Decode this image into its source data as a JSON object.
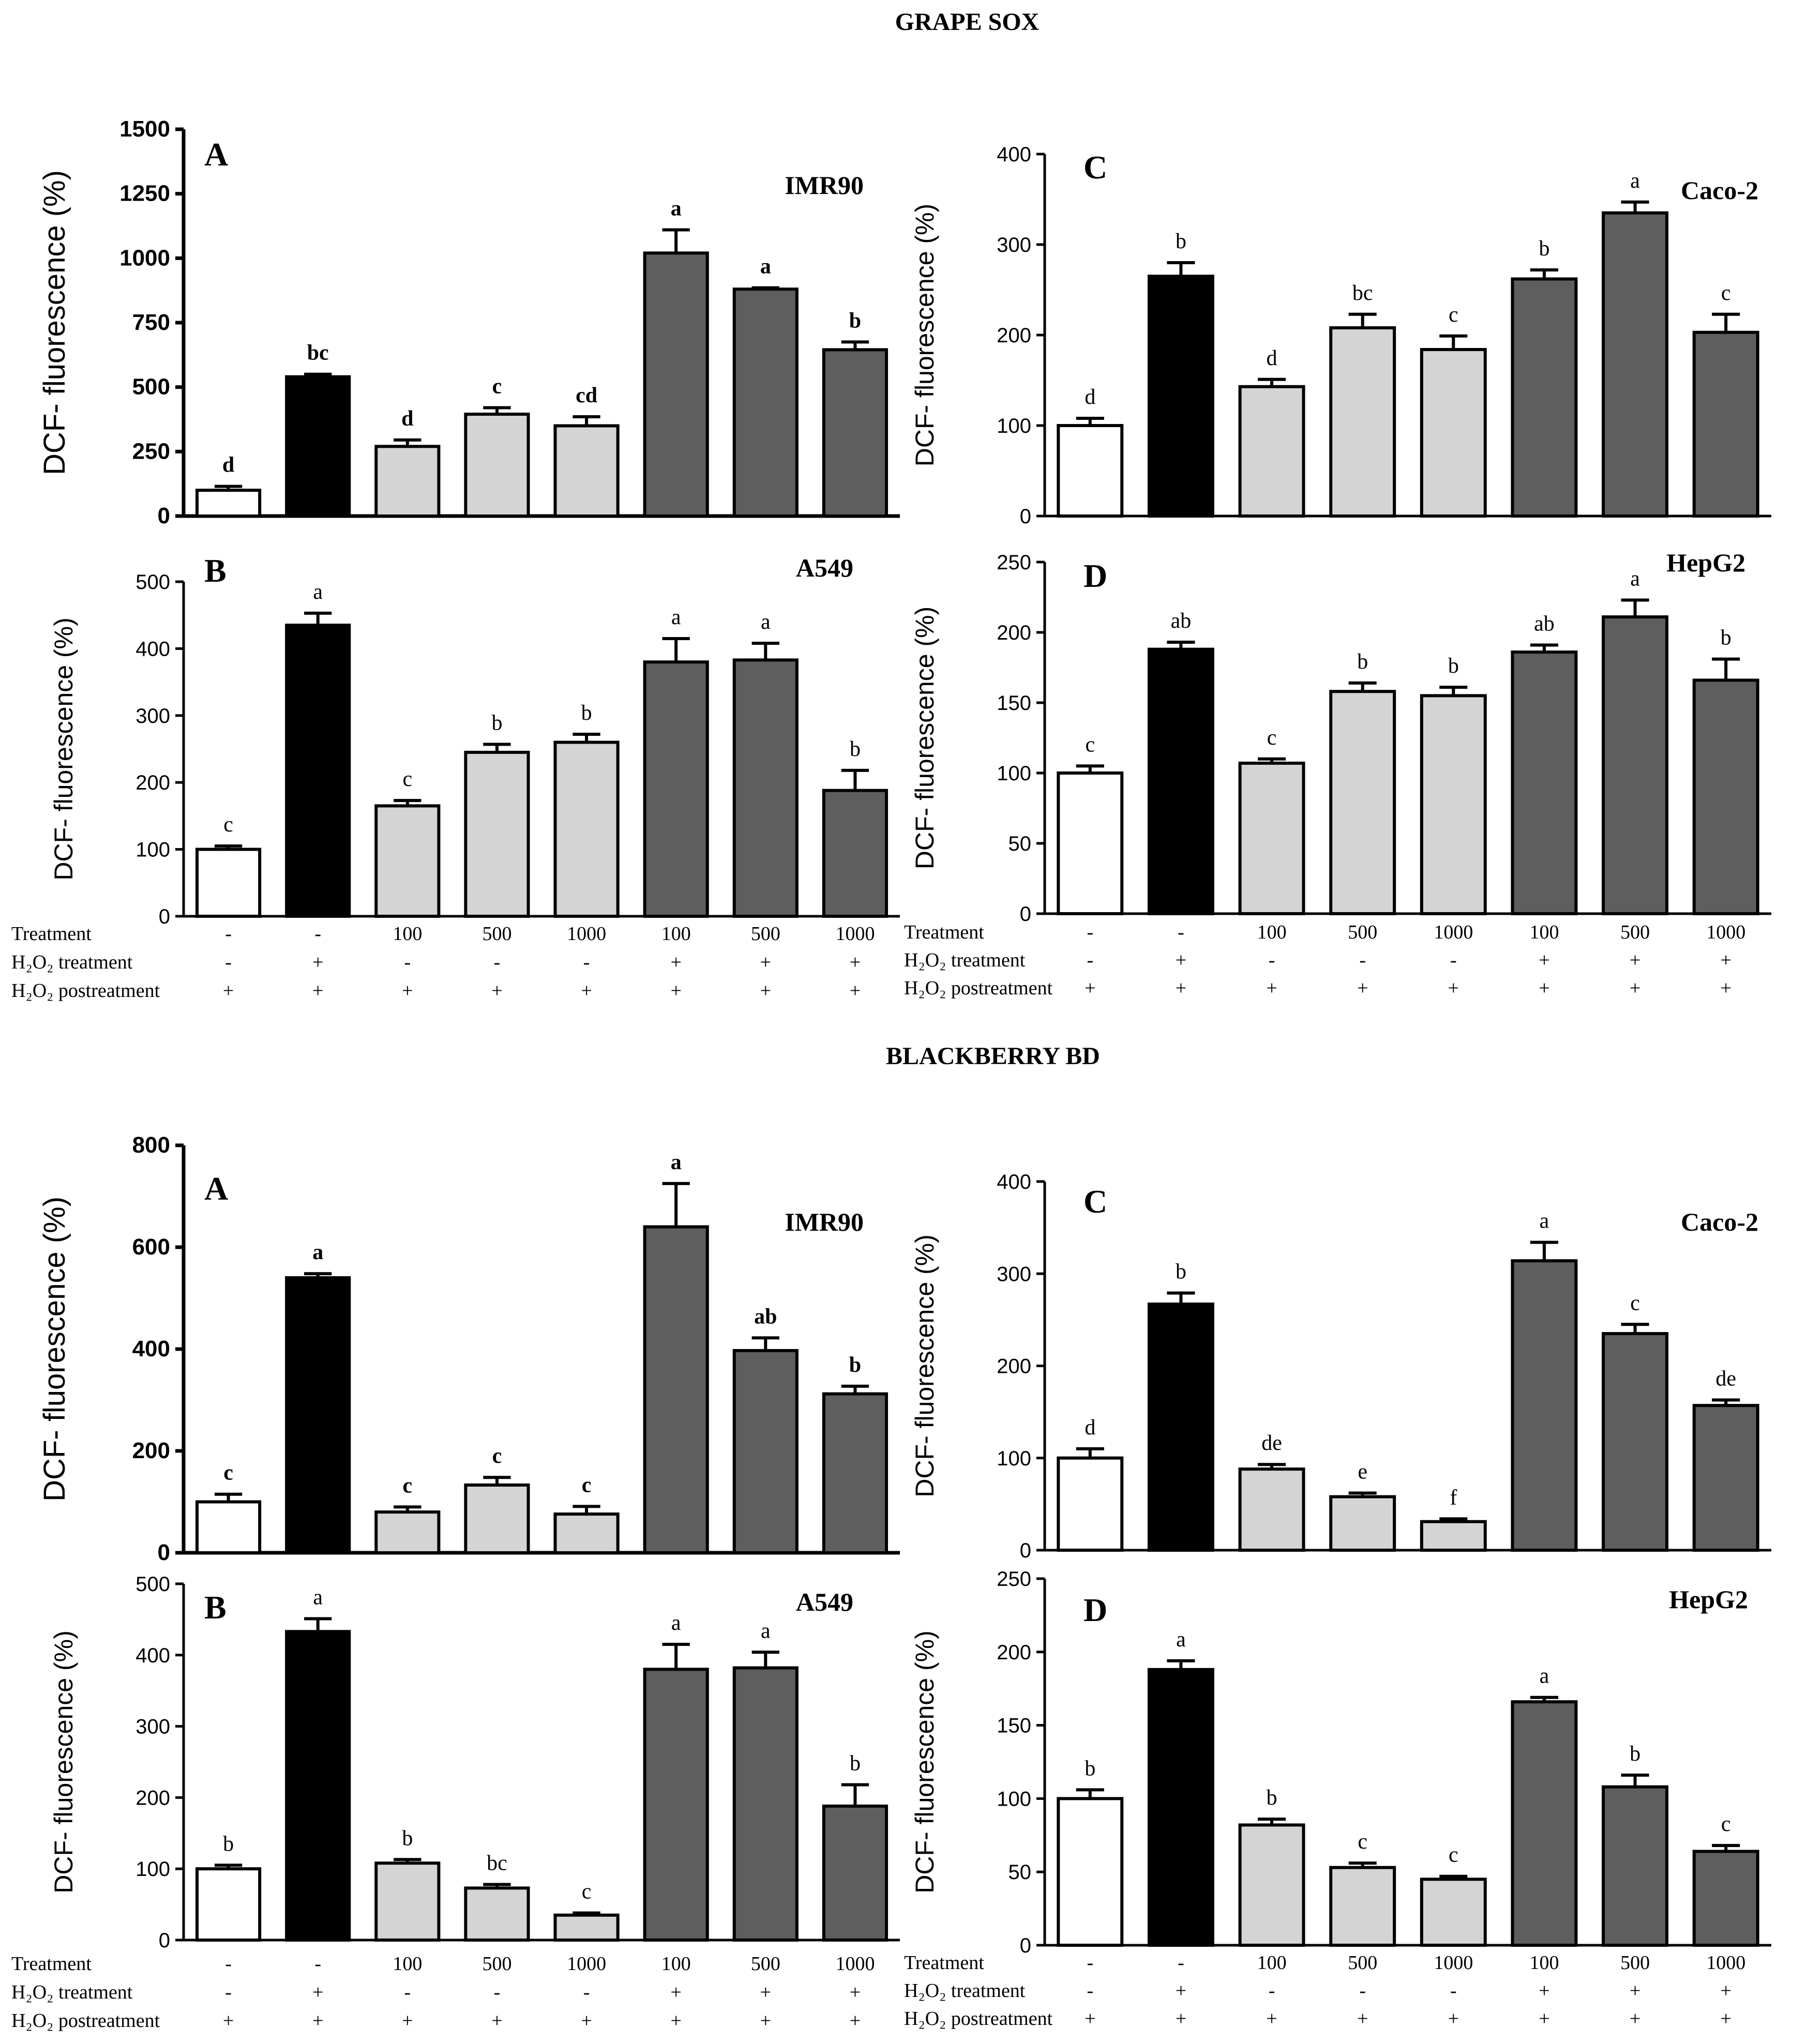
{
  "sections": [
    {
      "title": "GRAPE SOX",
      "panels": [
        {
          "letter": "A",
          "cell": "IMR90",
          "ylabel": "DCF- fluorescence (%)",
          "chart_data": {
            "type": "bar",
            "ylim": [
              0,
              1500
            ],
            "yticks": [
              0,
              250,
              500,
              750,
              1000,
              1250,
              1500
            ],
            "values": [
              100,
              540,
              270,
              395,
              350,
              1020,
              880,
              645
            ],
            "errors": [
              15,
              10,
              25,
              25,
              35,
              90,
              5,
              30
            ],
            "letters": [
              "d",
              "bc",
              "d",
              "c",
              "cd",
              "a",
              "a",
              "b"
            ]
          }
        },
        {
          "letter": "B",
          "cell": "A549",
          "ylabel": "DCF- fluorescence (%)",
          "chart_data": {
            "type": "bar",
            "ylim": [
              0,
              500
            ],
            "yticks": [
              0,
              100,
              200,
              300,
              400,
              500
            ],
            "values": [
              100,
              435,
              165,
              245,
              260,
              380,
              383,
              188
            ],
            "errors": [
              5,
              18,
              8,
              12,
              12,
              35,
              25,
              30
            ],
            "letters": [
              "c",
              "a",
              "c",
              "b",
              "b",
              "a",
              "a",
              "b"
            ]
          }
        },
        {
          "letter": "C",
          "cell": "Caco-2",
          "ylabel": "DCF- fluorescence (%)",
          "chart_data": {
            "type": "bar",
            "ylim": [
              0,
              400
            ],
            "yticks": [
              0,
              100,
              200,
              300,
              400
            ],
            "values": [
              100,
              265,
              143,
              208,
              184,
              262,
              335,
              203
            ],
            "errors": [
              8,
              15,
              8,
              15,
              15,
              10,
              12,
              20
            ],
            "letters": [
              "d",
              "b",
              "d",
              "bc",
              "c",
              "b",
              "a",
              "c"
            ]
          }
        },
        {
          "letter": "D",
          "cell": "HepG2",
          "ylabel": "DCF- fluorescence (%)",
          "chart_data": {
            "type": "bar",
            "ylim": [
              0,
              250
            ],
            "yticks": [
              0,
              50,
              100,
              150,
              200,
              250
            ],
            "values": [
              100,
              188,
              107,
              158,
              155,
              186,
              211,
              166
            ],
            "errors": [
              5,
              5,
              3,
              6,
              6,
              5,
              12,
              15
            ],
            "letters": [
              "c",
              "ab",
              "c",
              "b",
              "b",
              "ab",
              "a",
              "b"
            ]
          }
        }
      ]
    },
    {
      "title": "BLACKBERRY BD",
      "panels": [
        {
          "letter": "A",
          "cell": "IMR90",
          "ylabel": "DCF- fluorescence (%)",
          "chart_data": {
            "type": "bar",
            "ylim": [
              0,
              800
            ],
            "yticks": [
              0,
              200,
              400,
              600,
              800
            ],
            "values": [
              100,
              540,
              80,
              133,
              76,
              640,
              397,
              312
            ],
            "errors": [
              15,
              8,
              10,
              15,
              15,
              85,
              25,
              15
            ],
            "letters": [
              "c",
              "a",
              "c",
              "c",
              "c",
              "a",
              "ab",
              "b"
            ]
          }
        },
        {
          "letter": "B",
          "cell": "A549",
          "ylabel": "DCF- fluorescence (%)",
          "chart_data": {
            "type": "bar",
            "ylim": [
              0,
              500
            ],
            "yticks": [
              0,
              100,
              200,
              300,
              400,
              500
            ],
            "values": [
              100,
              433,
              108,
              73,
              35,
              380,
              382,
              188
            ],
            "errors": [
              5,
              18,
              5,
              5,
              3,
              35,
              22,
              30
            ],
            "letters": [
              "b",
              "a",
              "b",
              "bc",
              "c",
              "a",
              "a",
              "b"
            ]
          }
        },
        {
          "letter": "C",
          "cell": "Caco-2",
          "ylabel": "DCF- fluorescence (%)",
          "chart_data": {
            "type": "bar",
            "ylim": [
              0,
              400
            ],
            "yticks": [
              0,
              100,
              200,
              300,
              400
            ],
            "values": [
              100,
              267,
              88,
              58,
              31,
              314,
              235,
              157
            ],
            "errors": [
              10,
              12,
              5,
              4,
              3,
              20,
              10,
              6
            ],
            "letters": [
              "d",
              "b",
              "de",
              "e",
              "f",
              "a",
              "c",
              "de"
            ]
          }
        },
        {
          "letter": "D",
          "cell": "HepG2",
          "ylabel": "DCF- fluorescence (%)",
          "chart_data": {
            "type": "bar",
            "ylim": [
              0,
              250
            ],
            "yticks": [
              0,
              50,
              100,
              150,
              200,
              250
            ],
            "values": [
              100,
              188,
              82,
              53,
              45,
              166,
              108,
              64
            ],
            "errors": [
              6,
              6,
              4,
              3,
              2,
              3,
              8,
              4
            ],
            "letters": [
              "b",
              "a",
              "b",
              "c",
              "c",
              "a",
              "b",
              "c"
            ]
          }
        }
      ]
    }
  ],
  "table": {
    "row_labels": [
      "Treatment",
      "H₂O₂ treatment",
      "H₂O₂ postreatment"
    ],
    "treatment": [
      "-",
      "-",
      "100",
      "500",
      "1000",
      "100",
      "500",
      "1000"
    ],
    "h2o2_treatment": [
      "-",
      "+",
      "-",
      "-",
      "-",
      "+",
      "+",
      "+"
    ],
    "h2o2_postreatment": [
      "+",
      "+",
      "+",
      "+",
      "+",
      "+",
      "+",
      "+"
    ]
  },
  "colors": {
    "control": "#ffffff",
    "h2o2": "#000000",
    "extract": "#d4d4d4",
    "extract_h2o2": "#5e5e5e",
    "outline": "#000000"
  }
}
